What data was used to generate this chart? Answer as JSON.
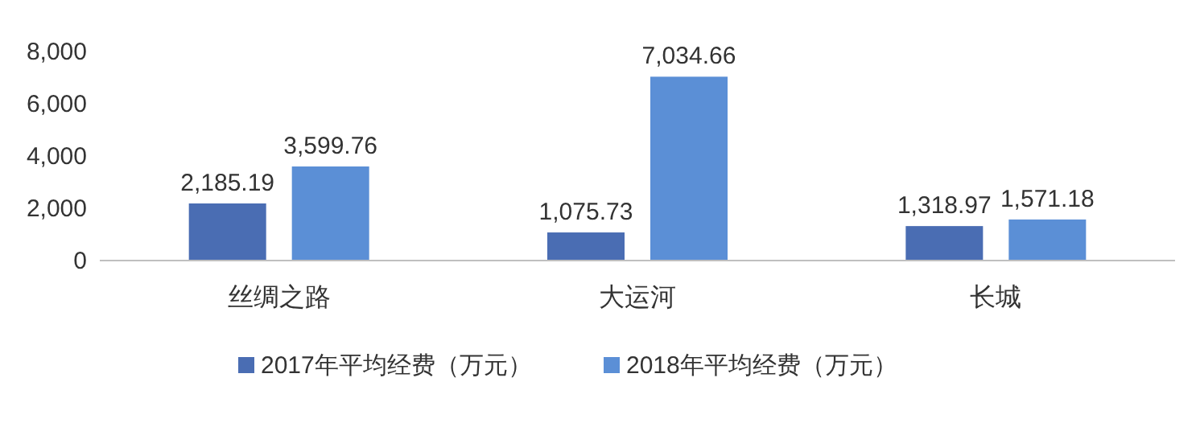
{
  "chart_data": {
    "type": "bar",
    "categories": [
      "丝绸之路",
      "大运河",
      "长城"
    ],
    "series": [
      {
        "name": "2017年平均经费（万元）",
        "color": "#4a6db3",
        "values": [
          2185.19,
          1075.73,
          1318.97
        ],
        "value_labels": [
          "2,185.19",
          "1,075.73",
          "1,318.97"
        ]
      },
      {
        "name": "2018年平均经费（万元）",
        "color": "#5b8fd6",
        "values": [
          3599.76,
          7034.66,
          1571.18
        ],
        "value_labels": [
          "3,599.76",
          "7,034.66",
          "1,571.18"
        ]
      }
    ],
    "ylim": [
      0,
      8000
    ],
    "yticks": [
      0,
      {
        "value": 2000,
        "label": "2,000"
      },
      {
        "value": 4000,
        "label": "4,000"
      },
      {
        "value": 6000,
        "label": "6,000"
      },
      {
        "value": 8000,
        "label": "8,000"
      }
    ],
    "grid": false,
    "legend": "bottom"
  }
}
